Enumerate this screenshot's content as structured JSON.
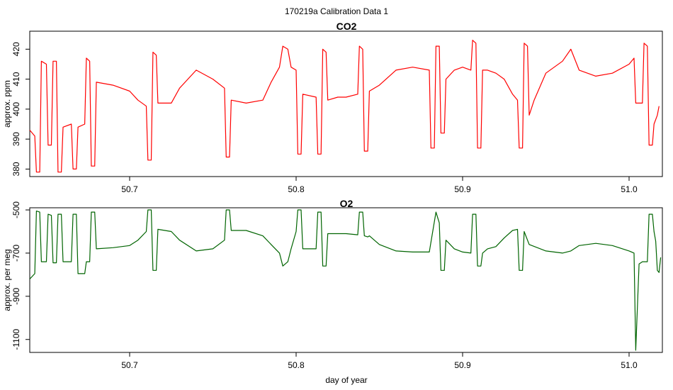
{
  "figure": {
    "title": "170219a   Calibration Data 1"
  },
  "chart_data": [
    {
      "type": "line",
      "title": "CO2",
      "xlabel": "",
      "ylabel": "approx. ppm",
      "xlim": [
        50.64,
        51.02
      ],
      "ylim": [
        377.5,
        426
      ],
      "x_ticks": [
        50.7,
        50.8,
        50.9,
        51.0
      ],
      "x_tick_labels": [
        "50.7",
        "50.8",
        "50.9",
        "51.0"
      ],
      "y_ticks": [
        380,
        390,
        400,
        410,
        420
      ],
      "y_tick_labels": [
        "380",
        "390",
        "400",
        "410",
        "420"
      ],
      "grid": false,
      "series": [
        {
          "color": "#ff0000",
          "points": [
            [
              50.64,
              393
            ],
            [
              50.643,
              391
            ],
            [
              50.644,
              379
            ],
            [
              50.646,
              379
            ],
            [
              50.647,
              416
            ],
            [
              50.65,
              415
            ],
            [
              50.651,
              388
            ],
            [
              50.653,
              388
            ],
            [
              50.654,
              416
            ],
            [
              50.656,
              416
            ],
            [
              50.657,
              379
            ],
            [
              50.659,
              379
            ],
            [
              50.66,
              394
            ],
            [
              50.665,
              395
            ],
            [
              50.666,
              380
            ],
            [
              50.668,
              380
            ],
            [
              50.669,
              394
            ],
            [
              50.673,
              395
            ],
            [
              50.674,
              417
            ],
            [
              50.676,
              416
            ],
            [
              50.677,
              381
            ],
            [
              50.679,
              381
            ],
            [
              50.68,
              409
            ],
            [
              50.69,
              408
            ],
            [
              50.7,
              406
            ],
            [
              50.705,
              403
            ],
            [
              50.71,
              401
            ],
            [
              50.711,
              383
            ],
            [
              50.713,
              383
            ],
            [
              50.714,
              419
            ],
            [
              50.716,
              418
            ],
            [
              50.717,
              402
            ],
            [
              50.725,
              402
            ],
            [
              50.73,
              407
            ],
            [
              50.74,
              413
            ],
            [
              50.75,
              410
            ],
            [
              50.757,
              407
            ],
            [
              50.758,
              384
            ],
            [
              50.76,
              384
            ],
            [
              50.761,
              403
            ],
            [
              50.77,
              402
            ],
            [
              50.78,
              403
            ],
            [
              50.785,
              409
            ],
            [
              50.79,
              414
            ],
            [
              50.792,
              421
            ],
            [
              50.795,
              420
            ],
            [
              50.797,
              414
            ],
            [
              50.8,
              413
            ],
            [
              50.801,
              385
            ],
            [
              50.803,
              385
            ],
            [
              50.804,
              405
            ],
            [
              50.812,
              404
            ],
            [
              50.813,
              385
            ],
            [
              50.815,
              385
            ],
            [
              50.816,
              420
            ],
            [
              50.818,
              419
            ],
            [
              50.819,
              403
            ],
            [
              50.825,
              404
            ],
            [
              50.83,
              404
            ],
            [
              50.837,
              405
            ],
            [
              50.838,
              421
            ],
            [
              50.84,
              420
            ],
            [
              50.841,
              386
            ],
            [
              50.843,
              386
            ],
            [
              50.844,
              406
            ],
            [
              50.85,
              408
            ],
            [
              50.86,
              413
            ],
            [
              50.87,
              414
            ],
            [
              50.88,
              413
            ],
            [
              50.881,
              387
            ],
            [
              50.883,
              387
            ],
            [
              50.884,
              421
            ],
            [
              50.886,
              421
            ],
            [
              50.887,
              392
            ],
            [
              50.889,
              392
            ],
            [
              50.89,
              410
            ],
            [
              50.895,
              413
            ],
            [
              50.9,
              414
            ],
            [
              50.905,
              413
            ],
            [
              50.906,
              423
            ],
            [
              50.908,
              422
            ],
            [
              50.909,
              387
            ],
            [
              50.911,
              387
            ],
            [
              50.912,
              413
            ],
            [
              50.915,
              413
            ],
            [
              50.92,
              412
            ],
            [
              50.925,
              410
            ],
            [
              50.93,
              405
            ],
            [
              50.933,
              403
            ],
            [
              50.934,
              387
            ],
            [
              50.936,
              387
            ],
            [
              50.937,
              422
            ],
            [
              50.939,
              421
            ],
            [
              50.94,
              398
            ],
            [
              50.943,
              403
            ],
            [
              50.95,
              412
            ],
            [
              50.96,
              416
            ],
            [
              50.965,
              420
            ],
            [
              50.97,
              413
            ],
            [
              50.98,
              411
            ],
            [
              50.99,
              412
            ],
            [
              51.0,
              415
            ],
            [
              51.003,
              417
            ],
            [
              51.004,
              402
            ],
            [
              51.008,
              402
            ],
            [
              51.009,
              422
            ],
            [
              51.011,
              421
            ],
            [
              51.012,
              388
            ],
            [
              51.014,
              388
            ],
            [
              51.015,
              395
            ],
            [
              51.017,
              398
            ],
            [
              51.018,
              401
            ]
          ]
        }
      ]
    },
    {
      "type": "line",
      "title": "O2",
      "xlabel": "day of year",
      "ylabel": "approx. per meg",
      "xlim": [
        50.64,
        51.02
      ],
      "ylim": [
        -1160,
        -490
      ],
      "x_ticks": [
        50.7,
        50.8,
        50.9,
        51.0
      ],
      "x_tick_labels": [
        "50.7",
        "50.8",
        "50.9",
        "51.0"
      ],
      "y_ticks": [
        -500,
        -700,
        -900,
        -1100
      ],
      "y_tick_labels": [
        "-500",
        "-700",
        "-900",
        "-1100"
      ],
      "grid": false,
      "series": [
        {
          "color": "#006400",
          "points": [
            [
              50.64,
              -820
            ],
            [
              50.643,
              -795
            ],
            [
              50.644,
              -505
            ],
            [
              50.646,
              -510
            ],
            [
              50.647,
              -740
            ],
            [
              50.65,
              -740
            ],
            [
              50.651,
              -520
            ],
            [
              50.653,
              -525
            ],
            [
              50.654,
              -745
            ],
            [
              50.656,
              -745
            ],
            [
              50.657,
              -520
            ],
            [
              50.659,
              -520
            ],
            [
              50.66,
              -740
            ],
            [
              50.665,
              -740
            ],
            [
              50.666,
              -520
            ],
            [
              50.668,
              -520
            ],
            [
              50.669,
              -795
            ],
            [
              50.673,
              -795
            ],
            [
              50.674,
              -740
            ],
            [
              50.676,
              -740
            ],
            [
              50.677,
              -510
            ],
            [
              50.679,
              -510
            ],
            [
              50.68,
              -680
            ],
            [
              50.69,
              -675
            ],
            [
              50.7,
              -665
            ],
            [
              50.705,
              -640
            ],
            [
              50.71,
              -600
            ],
            [
              50.711,
              -500
            ],
            [
              50.713,
              -500
            ],
            [
              50.714,
              -780
            ],
            [
              50.716,
              -780
            ],
            [
              50.717,
              -590
            ],
            [
              50.725,
              -600
            ],
            [
              50.73,
              -640
            ],
            [
              50.74,
              -690
            ],
            [
              50.75,
              -680
            ],
            [
              50.757,
              -640
            ],
            [
              50.758,
              -500
            ],
            [
              50.76,
              -500
            ],
            [
              50.761,
              -595
            ],
            [
              50.77,
              -595
            ],
            [
              50.78,
              -620
            ],
            [
              50.785,
              -660
            ],
            [
              50.79,
              -700
            ],
            [
              50.792,
              -760
            ],
            [
              50.795,
              -740
            ],
            [
              50.797,
              -680
            ],
            [
              50.8,
              -600
            ],
            [
              50.801,
              -500
            ],
            [
              50.803,
              -500
            ],
            [
              50.804,
              -680
            ],
            [
              50.812,
              -680
            ],
            [
              50.813,
              -510
            ],
            [
              50.815,
              -510
            ],
            [
              50.816,
              -760
            ],
            [
              50.818,
              -760
            ],
            [
              50.819,
              -610
            ],
            [
              50.825,
              -610
            ],
            [
              50.83,
              -610
            ],
            [
              50.837,
              -615
            ],
            [
              50.838,
              -510
            ],
            [
              50.84,
              -510
            ],
            [
              50.841,
              -620
            ],
            [
              50.843,
              -625
            ],
            [
              50.844,
              -620
            ],
            [
              50.85,
              -660
            ],
            [
              50.86,
              -690
            ],
            [
              50.87,
              -695
            ],
            [
              50.88,
              -695
            ],
            [
              50.884,
              -510
            ],
            [
              50.886,
              -560
            ],
            [
              50.887,
              -780
            ],
            [
              50.889,
              -780
            ],
            [
              50.89,
              -640
            ],
            [
              50.895,
              -680
            ],
            [
              50.9,
              -695
            ],
            [
              50.905,
              -700
            ],
            [
              50.906,
              -520
            ],
            [
              50.908,
              -520
            ],
            [
              50.909,
              -760
            ],
            [
              50.911,
              -760
            ],
            [
              50.912,
              -700
            ],
            [
              50.915,
              -680
            ],
            [
              50.92,
              -670
            ],
            [
              50.925,
              -630
            ],
            [
              50.93,
              -595
            ],
            [
              50.933,
              -590
            ],
            [
              50.934,
              -780
            ],
            [
              50.936,
              -780
            ],
            [
              50.937,
              -600
            ],
            [
              50.94,
              -660
            ],
            [
              50.95,
              -690
            ],
            [
              50.96,
              -700
            ],
            [
              50.965,
              -690
            ],
            [
              50.97,
              -665
            ],
            [
              50.98,
              -655
            ],
            [
              50.99,
              -665
            ],
            [
              51.0,
              -690
            ],
            [
              51.003,
              -700
            ],
            [
              51.004,
              -1150
            ],
            [
              51.006,
              -750
            ],
            [
              51.008,
              -740
            ],
            [
              51.011,
              -740
            ],
            [
              51.012,
              -520
            ],
            [
              51.014,
              -520
            ],
            [
              51.015,
              -600
            ],
            [
              51.016,
              -645
            ],
            [
              51.017,
              -780
            ],
            [
              51.018,
              -790
            ],
            [
              51.019,
              -720
            ]
          ]
        }
      ]
    }
  ]
}
